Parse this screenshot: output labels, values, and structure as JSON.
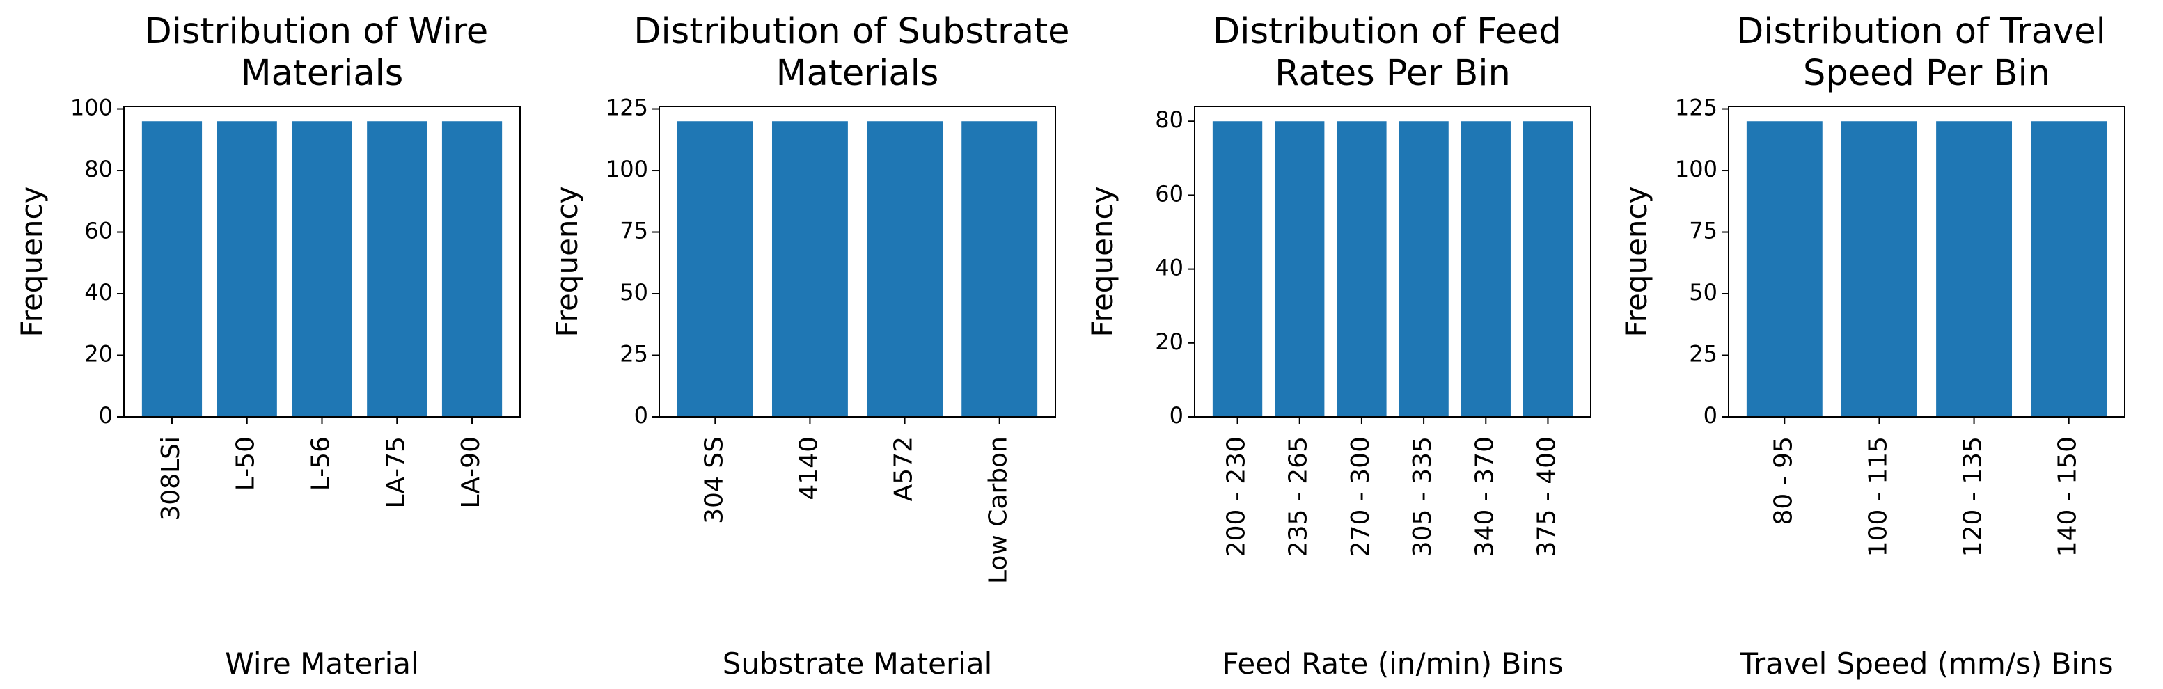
{
  "chart_data": [
    {
      "type": "bar",
      "title": "Distribution of Wire Materials",
      "xlabel": "Wire Material",
      "ylabel": "Frequency",
      "categories": [
        "308LSi",
        "L-50",
        "L-56",
        "LA-75",
        "LA-90"
      ],
      "values": [
        96,
        96,
        96,
        96,
        96
      ],
      "color": "#1f77b4",
      "ylim": [
        0,
        100.8
      ],
      "yticks": [
        0,
        20,
        40,
        60,
        80,
        100
      ]
    },
    {
      "type": "bar",
      "title": "Distribution of Substrate Materials",
      "xlabel": "Substrate Material",
      "ylabel": "Frequency",
      "categories": [
        "304 SS",
        "4140",
        "A572",
        "Low Carbon"
      ],
      "values": [
        120,
        120,
        120,
        120
      ],
      "color": "#1f77b4",
      "ylim": [
        0,
        126
      ],
      "yticks": [
        0,
        25,
        50,
        75,
        100,
        125
      ]
    },
    {
      "type": "bar",
      "title": "Distribution of Feed Rates Per Bin",
      "xlabel": "Feed Rate (in/min) Bins",
      "ylabel": "Frequency",
      "categories": [
        "200 - 230",
        "235 - 265",
        "270 - 300",
        "305 - 335",
        "340 - 370",
        "375 - 400"
      ],
      "values": [
        80,
        80,
        80,
        80,
        80,
        80
      ],
      "color": "#1f77b4",
      "ylim": [
        0,
        84
      ],
      "yticks": [
        0,
        20,
        40,
        60,
        80
      ]
    },
    {
      "type": "bar",
      "title": "Distribution of Travel Speed Per Bin",
      "xlabel": "Travel Speed (mm/s) Bins",
      "ylabel": "Frequency",
      "categories": [
        "80 - 95",
        "100 - 115",
        "120 - 135",
        "140 - 150"
      ],
      "values": [
        120,
        120,
        120,
        120
      ],
      "color": "#1f77b4",
      "ylim": [
        0,
        126
      ],
      "yticks": [
        0,
        25,
        50,
        75,
        100,
        125
      ]
    }
  ]
}
